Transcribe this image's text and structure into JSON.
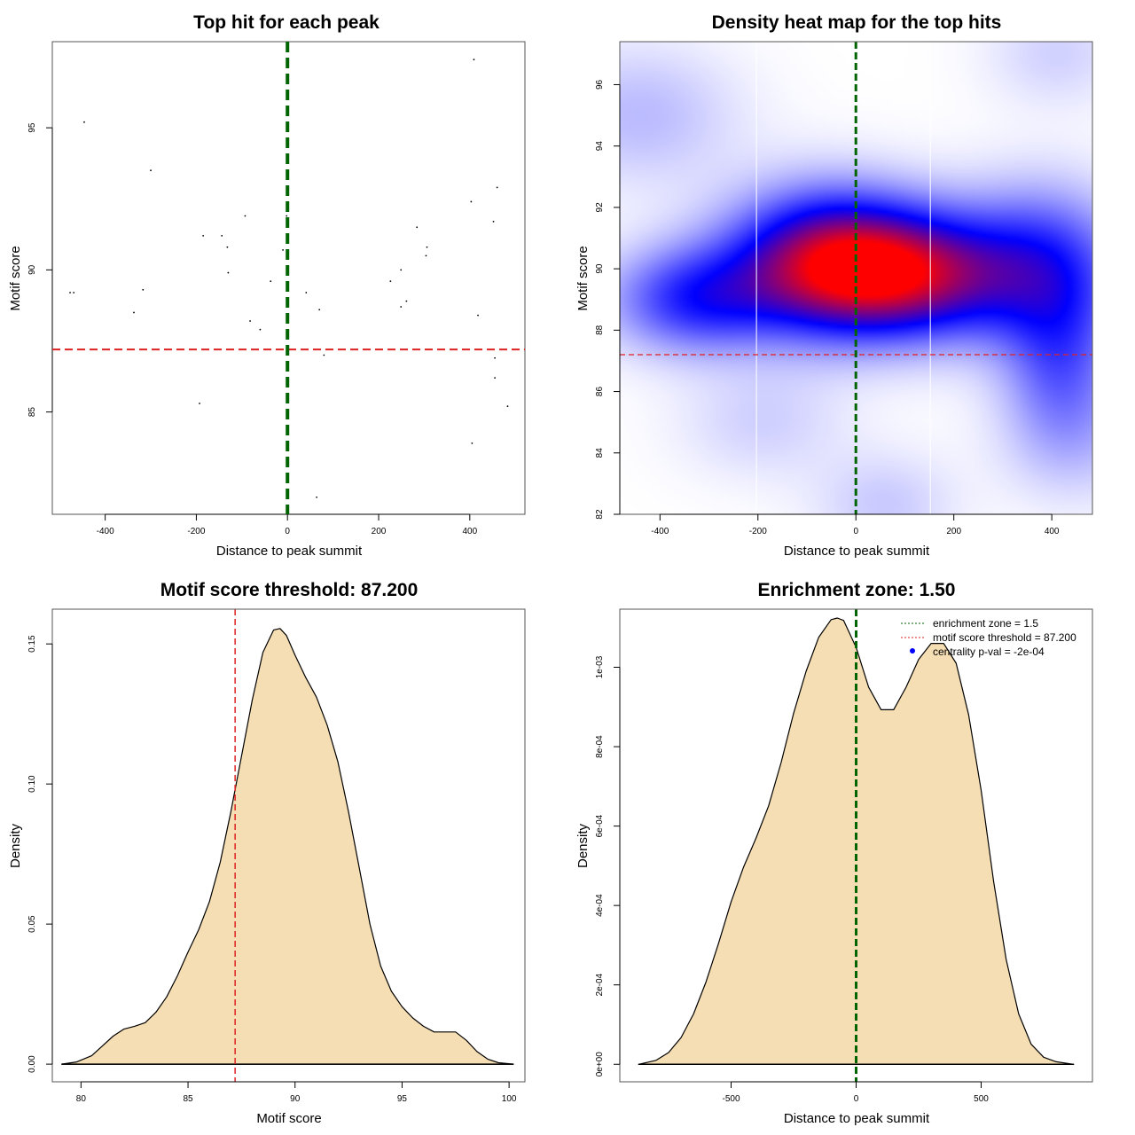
{
  "chart_data": [
    {
      "id": "scatter",
      "type": "scatter",
      "title": "Top hit for each peak",
      "xlabel": "Distance to peak summit",
      "ylabel": "Motif score",
      "xlim": [
        -516,
        521
      ],
      "ylim": [
        81.4,
        98.03
      ],
      "xticks": [
        -400,
        -200,
        0,
        200,
        400
      ],
      "xtick_labels": [
        "-400",
        "-200",
        "0",
        "200",
        "400"
      ],
      "yticks": [
        85,
        90,
        95
      ],
      "ytick_labels": [
        "85",
        "90",
        "95"
      ],
      "grid": false,
      "threshold_line": {
        "axis": "y",
        "value": 87.2,
        "color": "#dd2222",
        "style": "dashed"
      },
      "center_line": {
        "axis": "x",
        "value": 0,
        "color": "#006400",
        "style": "dashed"
      },
      "points": [
        {
          "x": -477,
          "y": 89.2
        },
        {
          "x": -469,
          "y": 89.2
        },
        {
          "x": -446,
          "y": 95.2
        },
        {
          "x": -300,
          "y": 93.5
        },
        {
          "x": -317,
          "y": 89.3
        },
        {
          "x": -337,
          "y": 88.5
        },
        {
          "x": -185,
          "y": 91.2
        },
        {
          "x": -144,
          "y": 91.2
        },
        {
          "x": -132,
          "y": 90.8
        },
        {
          "x": -130,
          "y": 89.9
        },
        {
          "x": -93,
          "y": 91.9
        },
        {
          "x": -193,
          "y": 85.3
        },
        {
          "x": -82,
          "y": 88.2
        },
        {
          "x": -60,
          "y": 87.9
        },
        {
          "x": -37,
          "y": 89.6
        },
        {
          "x": -10,
          "y": 90.7
        },
        {
          "x": -2,
          "y": 91.9
        },
        {
          "x": 41,
          "y": 89.2
        },
        {
          "x": 70,
          "y": 88.6
        },
        {
          "x": 80,
          "y": 87.0
        },
        {
          "x": 64,
          "y": 82.0
        },
        {
          "x": 409,
          "y": 97.4
        },
        {
          "x": 460,
          "y": 92.9
        },
        {
          "x": 403,
          "y": 92.4
        },
        {
          "x": 452,
          "y": 91.7
        },
        {
          "x": 284,
          "y": 91.5
        },
        {
          "x": 306,
          "y": 90.8
        },
        {
          "x": 304,
          "y": 90.5
        },
        {
          "x": 249,
          "y": 90.0
        },
        {
          "x": 226,
          "y": 89.6
        },
        {
          "x": 261,
          "y": 88.9
        },
        {
          "x": 249,
          "y": 88.7
        },
        {
          "x": 418,
          "y": 88.4
        },
        {
          "x": 455,
          "y": 86.9
        },
        {
          "x": 455,
          "y": 86.2
        },
        {
          "x": 483,
          "y": 85.2
        },
        {
          "x": 405,
          "y": 83.9
        }
      ]
    },
    {
      "id": "heatmap",
      "type": "heatmap",
      "title": "Density heat map for the top hits",
      "xlabel": "Distance to peak summit",
      "ylabel": "Motif score",
      "xlim": [
        -482,
        483
      ],
      "ylim": [
        82,
        97.4
      ],
      "xticks": [
        -400,
        -200,
        0,
        200,
        400
      ],
      "xtick_labels": [
        "-400",
        "-200",
        "0",
        "200",
        "400"
      ],
      "yticks": [
        82,
        84,
        86,
        88,
        90,
        92,
        94,
        96
      ],
      "ytick_labels": [
        "82",
        "84",
        "86",
        "88",
        "90",
        "92",
        "94",
        "96"
      ],
      "colorscale": [
        "#ffffff",
        "#0000ff",
        "#ff0000"
      ],
      "enrichment_zone_lines": [
        -203,
        152
      ],
      "threshold_line": {
        "axis": "y",
        "value": 87.2,
        "color": "#dd2222",
        "style": "dashed"
      },
      "center_line": {
        "axis": "x",
        "value": 0,
        "color": "#006400",
        "style": "dashed"
      },
      "density_kernels": [
        {
          "x": -60,
          "y": 90.2,
          "w": 1.0,
          "sx": 140,
          "sy": 1.6
        },
        {
          "x": 120,
          "y": 89.8,
          "w": 0.85,
          "sx": 140,
          "sy": 1.4
        },
        {
          "x": -330,
          "y": 89.0,
          "w": 0.55,
          "sx": 120,
          "sy": 1.2
        },
        {
          "x": 380,
          "y": 90.0,
          "w": 0.55,
          "sx": 120,
          "sy": 1.8
        },
        {
          "x": 420,
          "y": 87.0,
          "w": 0.35,
          "sx": 80,
          "sy": 1.8
        },
        {
          "x": -440,
          "y": 95.0,
          "w": 0.18,
          "sx": 140,
          "sy": 1.6
        },
        {
          "x": 410,
          "y": 97.0,
          "w": 0.12,
          "sx": 100,
          "sy": 1.2
        },
        {
          "x": 60,
          "y": 82.3,
          "w": 0.14,
          "sx": 100,
          "sy": 1.2
        },
        {
          "x": -190,
          "y": 85.0,
          "w": 0.12,
          "sx": 120,
          "sy": 1.3
        },
        {
          "x": 450,
          "y": 84.5,
          "w": 0.15,
          "sx": 110,
          "sy": 1.5
        }
      ]
    },
    {
      "id": "score-density",
      "type": "area",
      "title": "Motif score threshold: 87.200",
      "xlabel": "Motif score",
      "ylabel": "Density",
      "xlim": [
        78.66,
        100.74
      ],
      "ylim": [
        -0.0063,
        0.1624
      ],
      "xticks": [
        80,
        85,
        90,
        95,
        100
      ],
      "xtick_labels": [
        "80",
        "85",
        "90",
        "95",
        "100"
      ],
      "yticks": [
        0,
        0.05,
        0.1,
        0.15
      ],
      "ytick_labels": [
        "0.00",
        "0.05",
        "0.10",
        "0.15"
      ],
      "fill_color": "#f5deb3",
      "threshold_line": {
        "axis": "x",
        "value": 87.2,
        "color": "#dd2222",
        "style": "dashed"
      },
      "x": [
        79.1,
        79.8,
        80.5,
        81.0,
        81.5,
        82.0,
        82.5,
        83.0,
        83.5,
        84.0,
        84.5,
        85.0,
        85.5,
        86.0,
        86.5,
        87.0,
        87.5,
        88.0,
        88.5,
        89.0,
        89.3,
        89.6,
        90.0,
        90.5,
        91.0,
        91.5,
        92.0,
        92.5,
        93.0,
        93.5,
        94.0,
        94.5,
        95.0,
        95.5,
        96.0,
        96.5,
        97.0,
        97.5,
        98.0,
        98.5,
        99.0,
        99.5,
        100.2
      ],
      "y": [
        0.0,
        0.0008,
        0.003,
        0.0065,
        0.01,
        0.0125,
        0.0135,
        0.0148,
        0.0185,
        0.024,
        0.0315,
        0.04,
        0.048,
        0.058,
        0.072,
        0.09,
        0.11,
        0.13,
        0.147,
        0.155,
        0.1555,
        0.153,
        0.146,
        0.138,
        0.131,
        0.121,
        0.108,
        0.09,
        0.07,
        0.05,
        0.035,
        0.026,
        0.0205,
        0.0165,
        0.0135,
        0.0115,
        0.0115,
        0.0115,
        0.0085,
        0.0045,
        0.0018,
        0.0005,
        0.0
      ]
    },
    {
      "id": "distance-density",
      "type": "area",
      "title": "Enrichment zone: 1.50",
      "xlabel": "Distance to peak summit",
      "ylabel": "Density",
      "xlim": [
        -945,
        945
      ],
      "ylim": [
        -4.41e-05,
        0.0011463
      ],
      "xticks": [
        -500,
        0,
        500
      ],
      "xtick_labels": [
        "-500",
        "0",
        "500"
      ],
      "yticks": [
        0,
        0.0002,
        0.0004,
        0.0006,
        0.0008,
        0.001
      ],
      "ytick_labels": [
        "0e+00",
        "2e-04",
        "4e-04",
        "6e-04",
        "8e-04",
        "1e-03"
      ],
      "fill_color": "#f5deb3",
      "center_line": {
        "axis": "x",
        "value": 0,
        "color": "#006400",
        "style": "dashed"
      },
      "x": [
        -870,
        -800,
        -750,
        -700,
        -650,
        -600,
        -550,
        -500,
        -450,
        -400,
        -350,
        -300,
        -250,
        -200,
        -150,
        -100,
        -75,
        -50,
        0,
        50,
        100,
        150,
        200,
        250,
        300,
        350,
        400,
        450,
        500,
        550,
        600,
        650,
        700,
        750,
        800,
        870
      ],
      "y": [
        0.0,
        9.9e-06,
        2.97e-05,
        6.73e-05,
        0.000127,
        0.000208,
        0.000305,
        0.000409,
        0.000497,
        0.00057,
        0.000651,
        0.00076,
        0.000884,
        0.00099,
        0.001075,
        0.00112,
        0.001124,
        0.001118,
        0.00105,
        0.00095,
        0.000893,
        0.000893,
        0.00095,
        0.00102,
        0.00106,
        0.00106,
        0.00101,
        0.00088,
        0.00069,
        0.00046,
        0.000264,
        0.000127,
        5.05e-05,
        1.78e-05,
        6.3e-06,
        0.0
      ]
    }
  ],
  "legend": {
    "placement": "top-right",
    "entries": [
      {
        "label": "enrichment zone = 1.5",
        "symbol": "dotted-line",
        "color": "#006400"
      },
      {
        "label": "motif score threshold = 87.200",
        "symbol": "dotted-line",
        "color": "#dd2222"
      },
      {
        "label": "centrality p-val = -2e-04",
        "symbol": "dot",
        "color": "#0000ff"
      }
    ]
  }
}
